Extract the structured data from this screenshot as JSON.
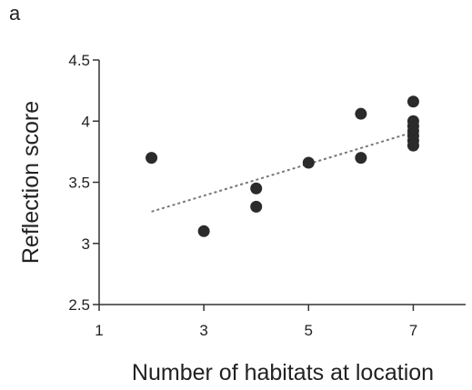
{
  "panel_label": "a",
  "chart_data": {
    "type": "scatter",
    "title": "",
    "xlabel": "Number of habitats at location",
    "ylabel": "Reflection score",
    "xlim": [
      1,
      8
    ],
    "ylim": [
      2.5,
      4.5
    ],
    "xticks": [
      1,
      3,
      5,
      7
    ],
    "xtick_labels": [
      "1",
      "3",
      "5",
      "7"
    ],
    "yticks": [
      2.5,
      3,
      3.5,
      4,
      4.5
    ],
    "ytick_labels": [
      "2.5",
      "3",
      "3.5",
      "4",
      "4.5"
    ],
    "grid": false,
    "points": [
      {
        "x": 2,
        "y": 3.7
      },
      {
        "x": 3,
        "y": 3.1
      },
      {
        "x": 4,
        "y": 3.45
      },
      {
        "x": 4,
        "y": 3.3
      },
      {
        "x": 5,
        "y": 3.66
      },
      {
        "x": 6,
        "y": 4.06
      },
      {
        "x": 6,
        "y": 3.7
      },
      {
        "x": 7,
        "y": 4.16
      },
      {
        "x": 7,
        "y": 4.0
      },
      {
        "x": 7,
        "y": 3.96
      },
      {
        "x": 7,
        "y": 3.92
      },
      {
        "x": 7,
        "y": 3.88
      },
      {
        "x": 7,
        "y": 3.84
      },
      {
        "x": 7,
        "y": 3.8
      }
    ],
    "trendline": {
      "style": "dashed",
      "x": [
        2,
        7
      ],
      "y": [
        3.26,
        3.91
      ]
    },
    "colors": {
      "points": "#2b2b2b",
      "axis": "#333333",
      "trendline": "#777777"
    }
  }
}
